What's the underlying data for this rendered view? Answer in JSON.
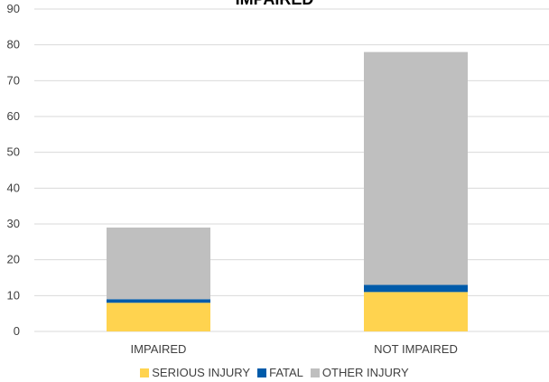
{
  "chart_data": {
    "type": "bar",
    "stacked": true,
    "title": "IMPAIRED",
    "categories": [
      "IMPAIRED",
      "NOT IMPAIRED"
    ],
    "series": [
      {
        "name": "SERIOUS INJURY",
        "values": [
          8,
          11
        ],
        "color": "#FFD34F"
      },
      {
        "name": "FATAL",
        "values": [
          1,
          2
        ],
        "color": "#005BAA"
      },
      {
        "name": "OTHER INJURY",
        "values": [
          20,
          65
        ],
        "color": "#BFBFBF"
      }
    ],
    "ylim": [
      0,
      90
    ],
    "yticks": [
      "0",
      "10",
      "20",
      "30",
      "40",
      "50",
      "60",
      "70",
      "80",
      "90"
    ],
    "grid": true,
    "legend": "bottom"
  }
}
